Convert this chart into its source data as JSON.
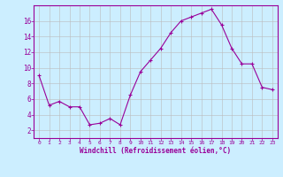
{
  "x": [
    0,
    1,
    2,
    3,
    4,
    5,
    6,
    7,
    8,
    9,
    10,
    11,
    12,
    13,
    14,
    15,
    16,
    17,
    18,
    19,
    20,
    21,
    22,
    23
  ],
  "y": [
    9.0,
    5.2,
    5.7,
    5.0,
    5.0,
    2.7,
    2.9,
    3.5,
    2.7,
    6.5,
    9.5,
    11.0,
    12.5,
    14.5,
    16.0,
    16.5,
    17.0,
    17.5,
    15.5,
    12.5,
    10.5,
    10.5,
    7.5,
    7.2
  ],
  "xlim": [
    -0.5,
    23.5
  ],
  "ylim": [
    1,
    18
  ],
  "yticks": [
    2,
    4,
    6,
    8,
    10,
    12,
    14,
    16
  ],
  "xlabel": "Windchill (Refroidissement éolien,°C)",
  "line_color": "#990099",
  "marker": "+",
  "bg_color": "#cceeff",
  "grid_color": "#bbbbbb",
  "title": ""
}
